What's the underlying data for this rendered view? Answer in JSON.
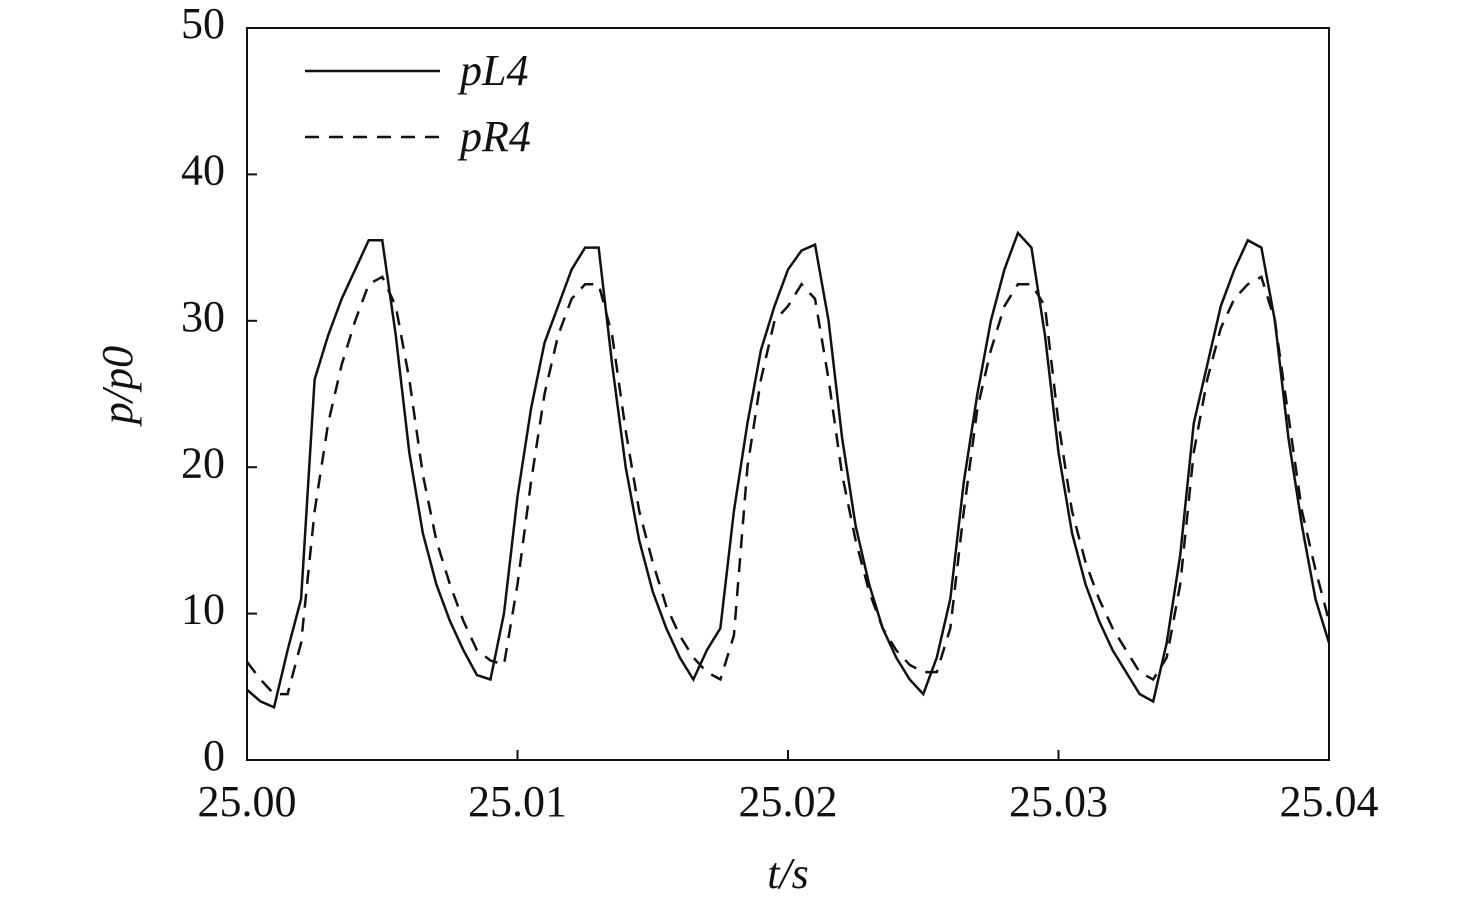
{
  "chart_data": {
    "type": "line",
    "xlabel": "t/s",
    "ylabel": "p/p0",
    "xlim": [
      25,
      25.04
    ],
    "xticks": [
      {
        "value": 25,
        "label": "25.00"
      },
      25.01,
      25.02,
      25.03,
      25.04
    ],
    "ylim": [
      0,
      50
    ],
    "yticks": [
      0,
      10,
      20,
      30,
      40,
      50
    ],
    "legend": "upper left",
    "x": [
      25,
      25.0005,
      25.001,
      25.0015,
      25.002,
      25.0025,
      25.003,
      25.0035,
      25.004,
      25.0045,
      25.005,
      25.0055,
      25.006,
      25.0065,
      25.007,
      25.0075,
      25.008,
      25.0085,
      25.009,
      25.0095,
      25.01,
      25.0105,
      25.011,
      25.0115,
      25.012,
      25.0125,
      25.013,
      25.0135,
      25.014,
      25.0145,
      25.015,
      25.0155,
      25.016,
      25.0165,
      25.017,
      25.0175,
      25.018,
      25.0185,
      25.019,
      25.0195,
      25.02,
      25.0205,
      25.021,
      25.0215,
      25.022,
      25.0225,
      25.023,
      25.0235,
      25.024,
      25.0245,
      25.025,
      25.0255,
      25.026,
      25.0265,
      25.027,
      25.0275,
      25.028,
      25.0285,
      25.029,
      25.0295,
      25.03,
      25.0305,
      25.031,
      25.0315,
      25.032,
      25.0325,
      25.033,
      25.0335,
      25.034,
      25.0345,
      25.035,
      25.0355,
      25.036,
      25.0365,
      25.037,
      25.0375,
      25.038,
      25.0385,
      25.039,
      25.0395,
      25.04
    ],
    "series": [
      {
        "name": "pL4",
        "color": "#111111",
        "style": "solid",
        "values": [
          4.8,
          4.0,
          3.6,
          7.5,
          11,
          26,
          29,
          31.5,
          33.5,
          35.5,
          35.5,
          29,
          21,
          15.5,
          12,
          9.5,
          7.5,
          5.8,
          5.5,
          10,
          18,
          24,
          28.5,
          31,
          33.5,
          35,
          35,
          27,
          20,
          15,
          11.5,
          9,
          7,
          5.5,
          7.5,
          9,
          17,
          23,
          28,
          31,
          33.5,
          34.8,
          35.2,
          30,
          22,
          16,
          12,
          9,
          7,
          5.5,
          4.5,
          7,
          11,
          19,
          25,
          30,
          33.5,
          36,
          35,
          29,
          21,
          15.5,
          12,
          9.5,
          7.5,
          6,
          4.5,
          4,
          8,
          14,
          23,
          27,
          31,
          33.5,
          35.5,
          35,
          30,
          22,
          16,
          11,
          8
        ]
      },
      {
        "name": "pR4",
        "color": "#111111",
        "style": "dashed",
        "values": [
          6.7,
          5.5,
          4.5,
          4.5,
          8,
          17,
          23,
          27,
          30,
          32.5,
          33,
          31,
          26,
          19.5,
          15,
          12,
          9.5,
          7.5,
          6.8,
          6.5,
          12,
          19,
          25,
          29,
          31.5,
          32.5,
          32.5,
          29,
          22.5,
          17,
          13.5,
          10.5,
          8.5,
          7,
          6,
          5.5,
          8.5,
          20,
          26,
          30,
          31,
          32.5,
          31.5,
          26,
          19.5,
          15,
          11.5,
          9,
          7.5,
          6.5,
          6,
          6,
          9,
          17,
          24,
          28,
          31,
          32.5,
          32.5,
          31,
          23,
          17,
          13.5,
          11,
          9,
          7.5,
          6,
          5.5,
          7,
          12,
          21,
          26,
          29.5,
          31.5,
          32.5,
          33,
          30,
          23.5,
          17,
          13,
          9.5
        ]
      }
    ]
  }
}
